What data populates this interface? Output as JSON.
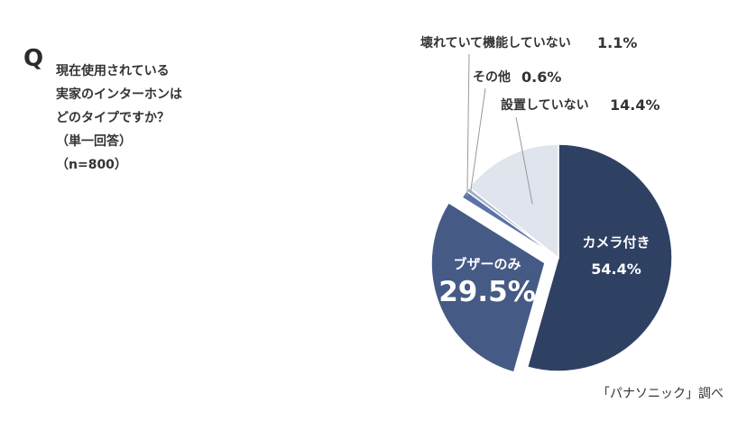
{
  "question": {
    "q_letter": "Q",
    "lines": [
      "現在使用されている",
      "実家のインターホンは",
      "どのタイプですか？",
      "（単一回答）",
      "（n=800）"
    ]
  },
  "source": "「パナソニック」調べ",
  "colors": {
    "camera": "#2f4163",
    "buzzer": "#455a85",
    "broken": "#5b73a6",
    "other": "#9fb0cc",
    "none": "#dfe4ed",
    "leader": "#999999",
    "text_dark": "#333333",
    "text_light": "#ffffff"
  },
  "chart_data": {
    "type": "pie",
    "title": "",
    "start_angle_deg": 0,
    "direction": "clockwise",
    "exploded": "ブザーのみ",
    "slices": [
      {
        "label": "カメラ付き",
        "value": 54.4,
        "value_text": "54.4%",
        "color_key": "camera"
      },
      {
        "label": "ブザーのみ",
        "value": 29.5,
        "value_text": "29.5%",
        "color_key": "buzzer"
      },
      {
        "label": "壊れていて機能していない",
        "value": 1.1,
        "value_text": "1.1%",
        "color_key": "broken"
      },
      {
        "label": "その他",
        "value": 0.6,
        "value_text": "0.6%",
        "color_key": "other"
      },
      {
        "label": "設置していない",
        "value": 14.4,
        "value_text": "14.4%",
        "color_key": "none"
      }
    ]
  }
}
